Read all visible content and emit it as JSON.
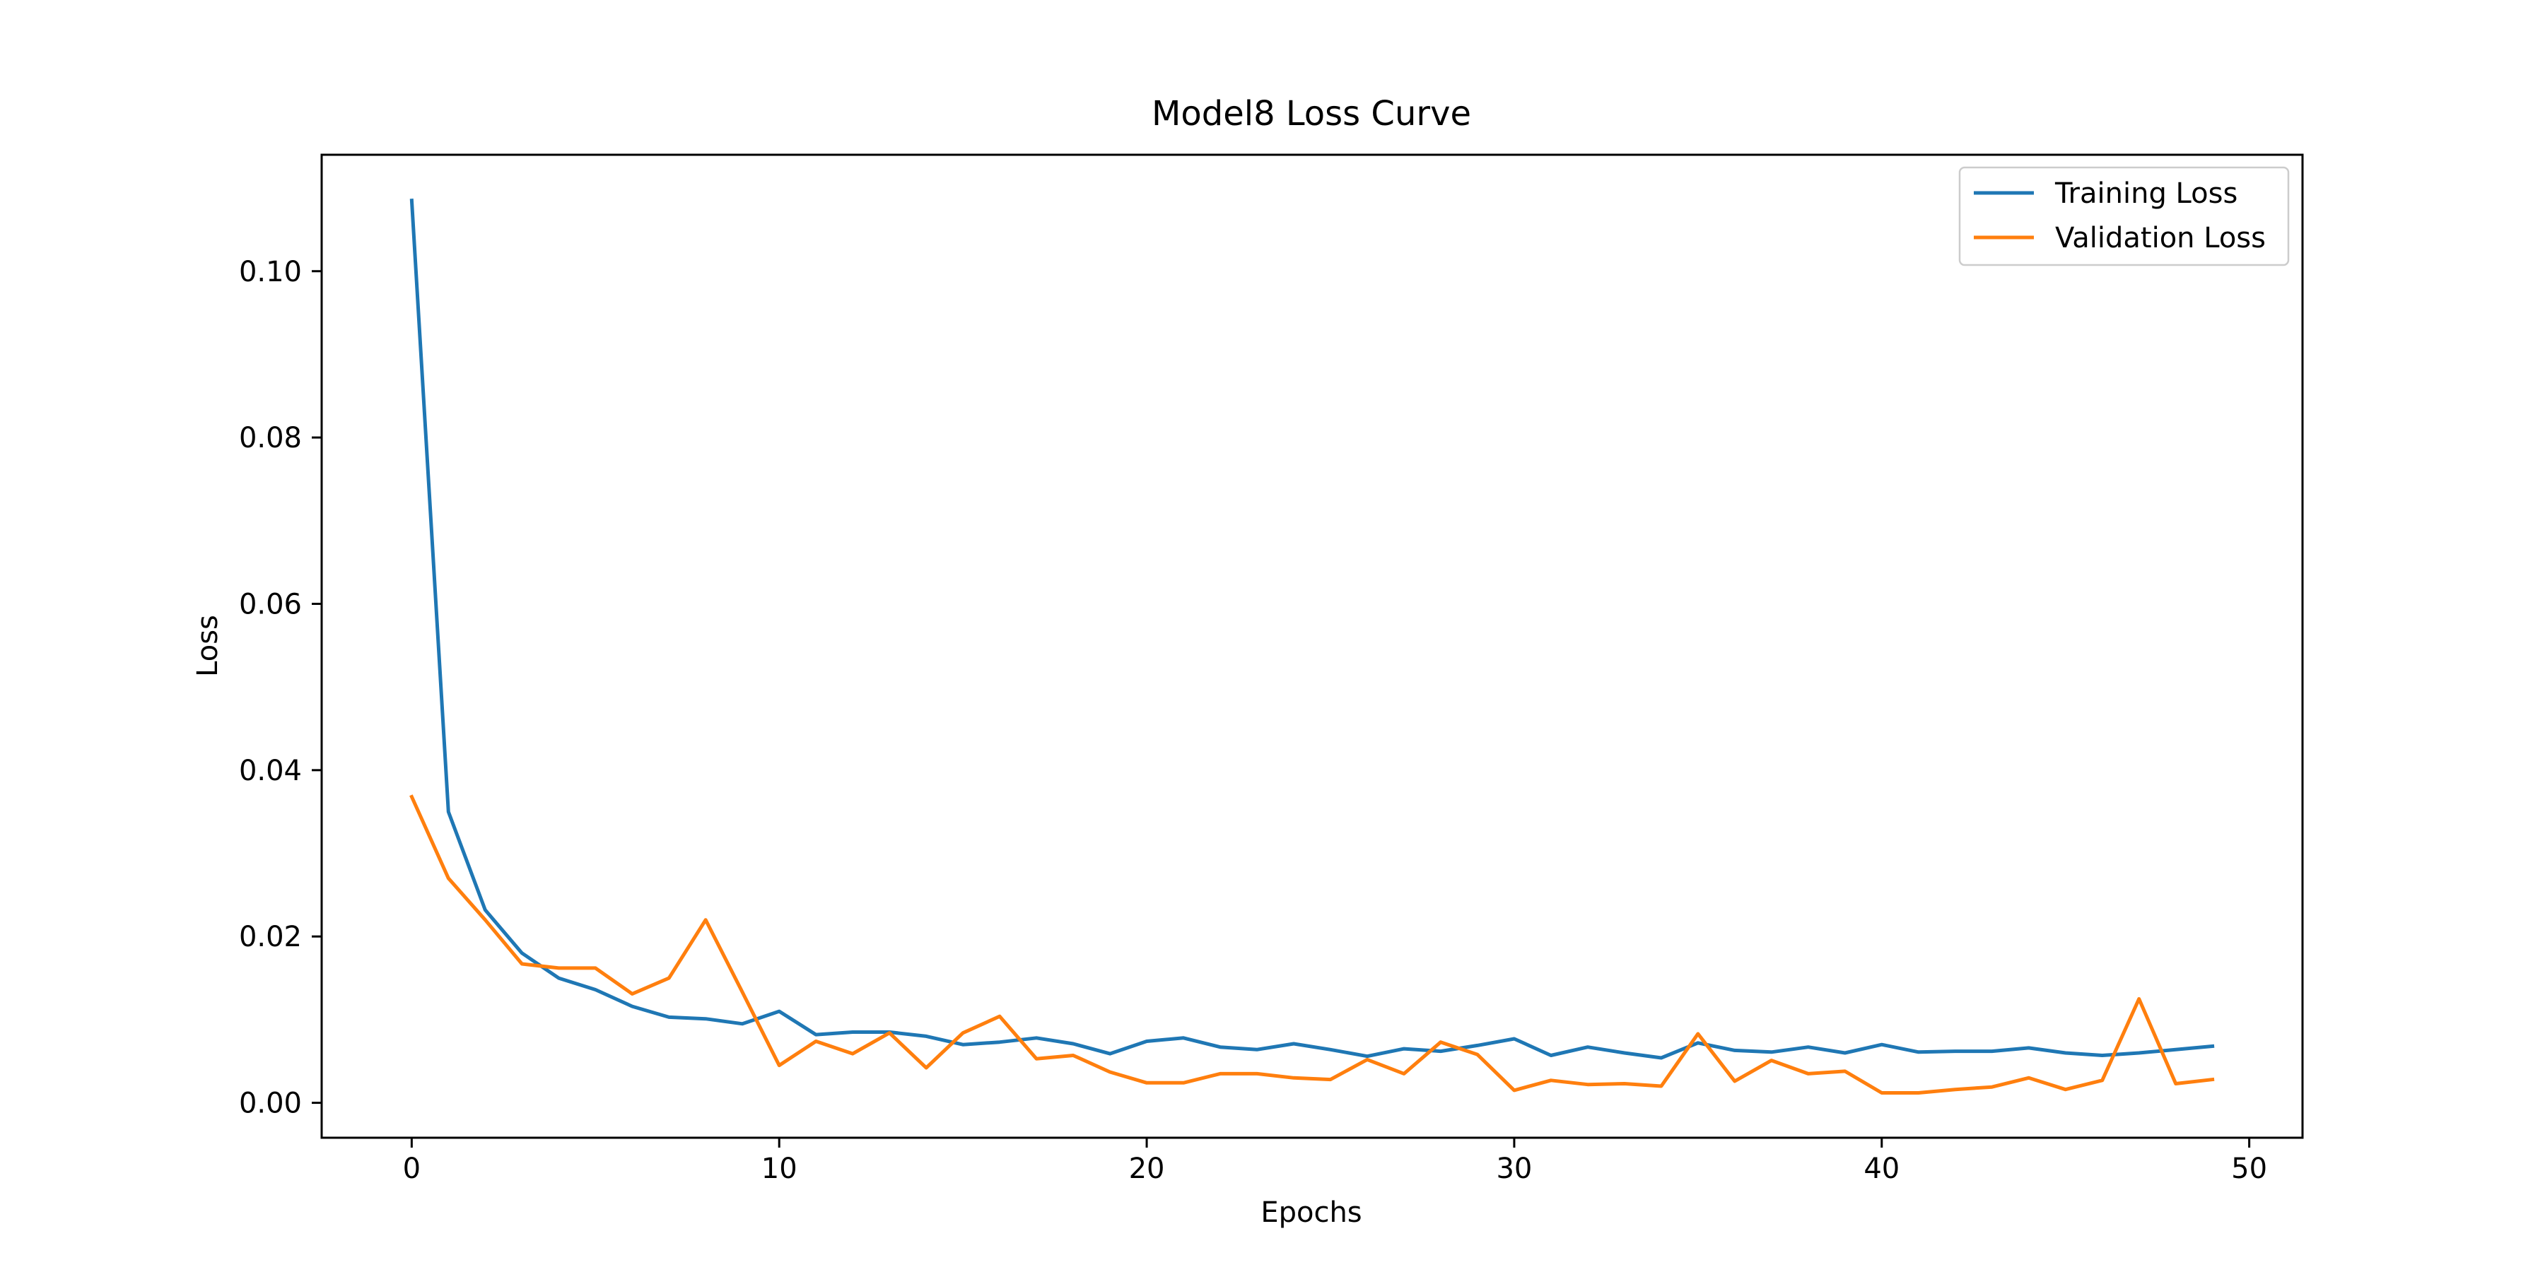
{
  "chart_data": {
    "type": "line",
    "title": "Model8 Loss Curve",
    "xlabel": "Epochs",
    "ylabel": "Loss",
    "xlim": [
      -2.45,
      51.45
    ],
    "ylim": [
      -0.0042,
      0.114
    ],
    "xticks": [
      0,
      10,
      20,
      30,
      40,
      50
    ],
    "xtick_labels": [
      "0",
      "10",
      "20",
      "30",
      "40",
      "50"
    ],
    "yticks": [
      0.0,
      0.02,
      0.04,
      0.06,
      0.08,
      0.1
    ],
    "ytick_labels": [
      "0.00",
      "0.02",
      "0.04",
      "0.06",
      "0.08",
      "0.10"
    ],
    "grid": false,
    "legend_position": "top-right",
    "x": [
      0,
      1,
      2,
      3,
      4,
      5,
      6,
      7,
      8,
      9,
      10,
      11,
      12,
      13,
      14,
      15,
      16,
      17,
      18,
      19,
      20,
      21,
      22,
      23,
      24,
      25,
      26,
      27,
      28,
      29,
      30,
      31,
      32,
      33,
      34,
      35,
      36,
      37,
      38,
      39,
      40,
      41,
      42,
      43,
      44,
      45,
      46,
      47,
      48,
      49
    ],
    "series": [
      {
        "name": "Training Loss",
        "color": "#1f77b4",
        "values": [
          0.1085,
          0.035,
          0.0232,
          0.018,
          0.015,
          0.0136,
          0.0116,
          0.0103,
          0.0101,
          0.0095,
          0.011,
          0.0082,
          0.0085,
          0.0085,
          0.008,
          0.007,
          0.0073,
          0.0078,
          0.0071,
          0.0059,
          0.0074,
          0.0078,
          0.0067,
          0.0064,
          0.0071,
          0.0064,
          0.0056,
          0.0065,
          0.0062,
          0.0069,
          0.0077,
          0.0057,
          0.0067,
          0.006,
          0.0054,
          0.0072,
          0.0063,
          0.0061,
          0.0067,
          0.006,
          0.007,
          0.0061,
          0.0062,
          0.0062,
          0.0066,
          0.006,
          0.0057,
          0.006,
          0.0064,
          0.0068
        ]
      },
      {
        "name": "Validation Loss",
        "color": "#ff7f0e",
        "values": [
          0.0368,
          0.027,
          0.022,
          0.0167,
          0.0162,
          0.0162,
          0.0131,
          0.015,
          0.022,
          0.0133,
          0.0045,
          0.0074,
          0.0059,
          0.0084,
          0.0042,
          0.0084,
          0.0104,
          0.0053,
          0.0057,
          0.0037,
          0.0024,
          0.0024,
          0.0035,
          0.0035,
          0.003,
          0.0028,
          0.0052,
          0.0035,
          0.0073,
          0.0058,
          0.0015,
          0.0027,
          0.0022,
          0.0023,
          0.002,
          0.0083,
          0.0026,
          0.0051,
          0.0035,
          0.0038,
          0.0012,
          0.0012,
          0.0016,
          0.0019,
          0.003,
          0.0016,
          0.0027,
          0.0125,
          0.0023,
          0.0028
        ]
      }
    ]
  }
}
